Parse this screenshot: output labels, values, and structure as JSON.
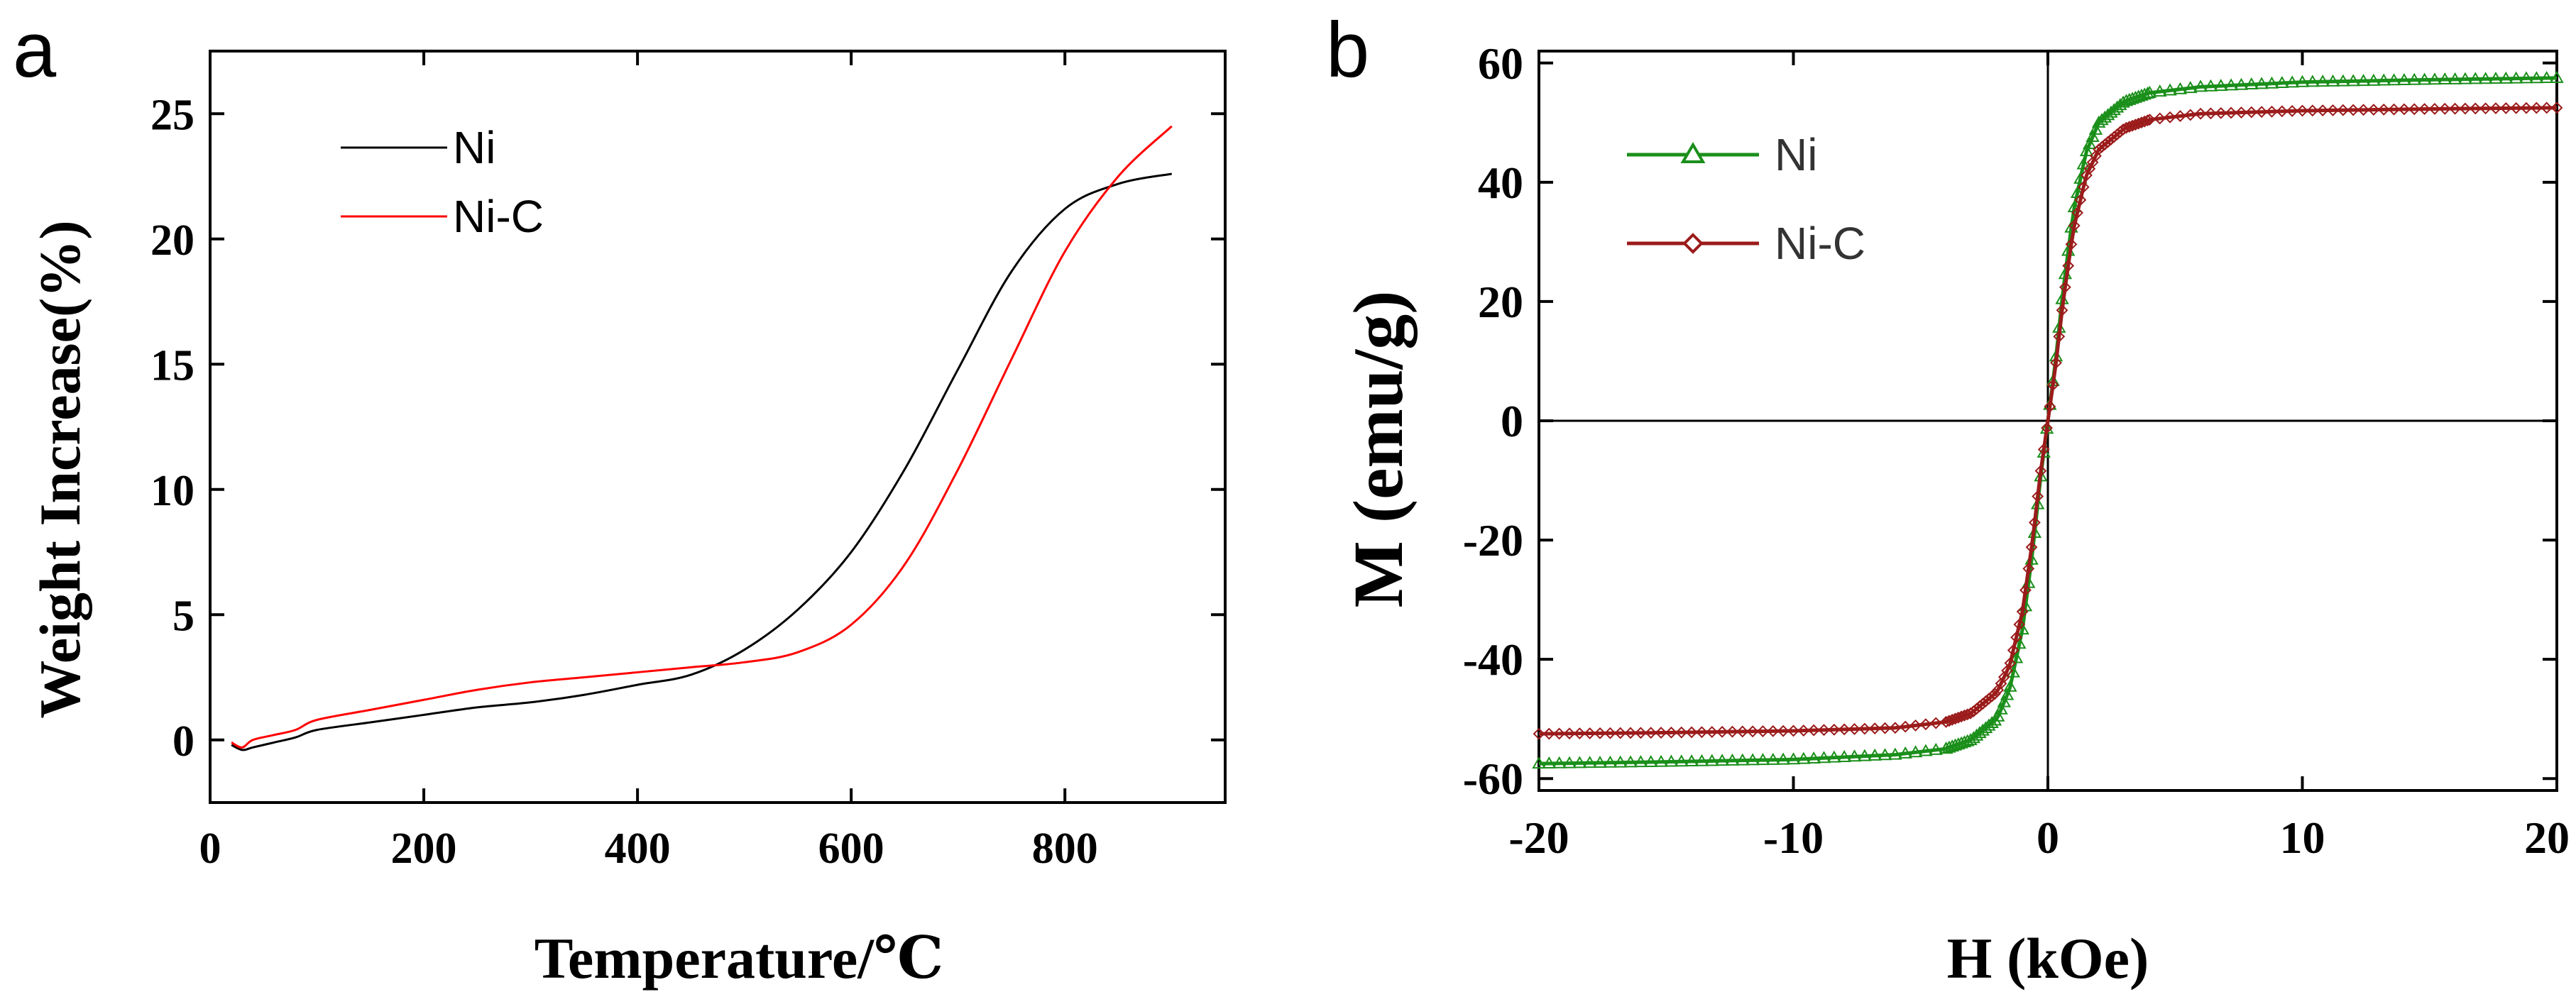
{
  "chart_data": [
    {
      "panel": "a",
      "type": "line",
      "title": "",
      "xlabel": "Temperature/℃",
      "ylabel": "Weight Increase(%)",
      "xlim": [
        0,
        950
      ],
      "ylim": [
        -2.5,
        27.5
      ],
      "xticks": [
        0,
        200,
        400,
        600,
        800
      ],
      "yticks": [
        0,
        5,
        10,
        15,
        20,
        25
      ],
      "grid": false,
      "legend_position": "top-left",
      "series": [
        {
          "name": "Ni",
          "color": "#000000",
          "x": [
            20,
            30,
            40,
            60,
            80,
            100,
            150,
            200,
            250,
            300,
            350,
            400,
            450,
            500,
            550,
            600,
            650,
            700,
            750,
            800,
            850,
            900
          ],
          "y": [
            -0.2,
            -0.4,
            -0.3,
            -0.1,
            0.1,
            0.4,
            0.7,
            1.0,
            1.3,
            1.5,
            1.8,
            2.2,
            2.6,
            3.6,
            5.2,
            7.5,
            10.8,
            14.8,
            18.7,
            21.2,
            22.2,
            22.6
          ]
        },
        {
          "name": "Ni-C",
          "color": "#ff0000",
          "x": [
            20,
            30,
            40,
            60,
            80,
            100,
            150,
            200,
            250,
            300,
            350,
            400,
            450,
            500,
            550,
            600,
            650,
            700,
            750,
            800,
            850,
            900
          ],
          "y": [
            -0.1,
            -0.3,
            0.0,
            0.2,
            0.4,
            0.8,
            1.2,
            1.6,
            2.0,
            2.3,
            2.5,
            2.7,
            2.9,
            3.1,
            3.5,
            4.6,
            7.0,
            10.8,
            15.2,
            19.5,
            22.5,
            24.5
          ]
        }
      ]
    },
    {
      "panel": "b",
      "type": "line",
      "title": "",
      "xlabel": "H (kOe)",
      "ylabel": "M (emu/g)",
      "xlim": [
        -20,
        20
      ],
      "ylim": [
        -62,
        62
      ],
      "xticks": [
        -20,
        -10,
        0,
        10,
        20
      ],
      "yticks": [
        -60,
        -40,
        -20,
        0,
        20,
        40,
        60
      ],
      "zero_lines": true,
      "grid": false,
      "legend_position": "top-left",
      "series": [
        {
          "name": "Ni",
          "color": "#1a8f1a",
          "marker": "triangle",
          "x": [
            -20,
            -15,
            -10,
            -6,
            -4,
            -3,
            -2,
            -1.5,
            -1,
            -0.6,
            -0.3,
            0,
            0.3,
            0.6,
            1,
            1.5,
            2,
            3,
            4,
            6,
            10,
            15,
            20
          ],
          "y": [
            -57.5,
            -57.2,
            -56.8,
            -56,
            -55,
            -53.5,
            -50,
            -45,
            -35,
            -22,
            -10,
            0,
            10,
            22,
            35,
            45,
            50,
            53.5,
            55,
            56,
            56.8,
            57.2,
            57.5
          ]
        },
        {
          "name": "Ni-C",
          "color": "#9b1b1b",
          "marker": "diamond",
          "x": [
            -20,
            -15,
            -10,
            -6,
            -4,
            -3,
            -2,
            -1.5,
            -1,
            -0.6,
            -0.3,
            0,
            0.3,
            0.6,
            1,
            1.5,
            2,
            3,
            4,
            6,
            10,
            15,
            20
          ],
          "y": [
            -52.5,
            -52.3,
            -52,
            -51.5,
            -50.5,
            -49,
            -45.5,
            -41,
            -32,
            -20,
            -9,
            0,
            9,
            20,
            32,
            41,
            45.5,
            49,
            50.5,
            51.5,
            52,
            52.3,
            52.5
          ]
        }
      ]
    }
  ]
}
